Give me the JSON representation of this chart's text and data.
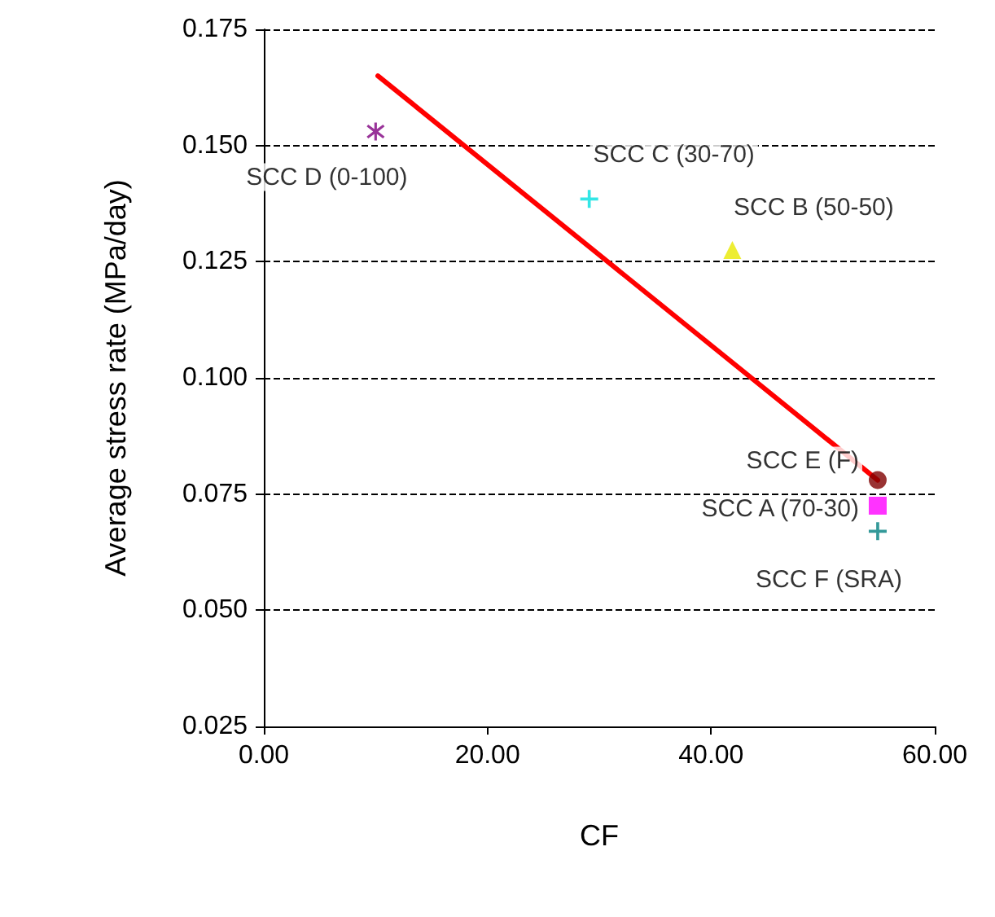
{
  "chart_data": {
    "type": "scatter",
    "xlabel": "CF",
    "ylabel": "Average stress rate (MPa/day)",
    "xlim": [
      0,
      60
    ],
    "xticks": [
      {
        "value": 0,
        "label": "0.00"
      },
      {
        "value": 20,
        "label": "20.00"
      },
      {
        "value": 40,
        "label": "40.00"
      },
      {
        "value": 60,
        "label": "60.00"
      }
    ],
    "ylim": [
      0.025,
      0.175
    ],
    "yticks": [
      {
        "value": 0.025,
        "label": "0.025"
      },
      {
        "value": 0.05,
        "label": "0.050"
      },
      {
        "value": 0.075,
        "label": "0.075"
      },
      {
        "value": 0.1,
        "label": "0.100"
      },
      {
        "value": 0.125,
        "label": "0.125"
      },
      {
        "value": 0.15,
        "label": "0.150"
      },
      {
        "value": 0.175,
        "label": "0.175"
      }
    ],
    "grid": "y",
    "legend": false,
    "series": [
      {
        "name": "SCC D (0-100)",
        "color": "#800080",
        "marker": "star",
        "x": [
          10.0
        ],
        "values": [
          0.153
        ]
      },
      {
        "name": "SCC C (30-70)",
        "color": "#00e0e0",
        "marker": "cross",
        "x": [
          29.1
        ],
        "values": [
          0.1385
        ]
      },
      {
        "name": "SCC B (50-50)",
        "color": "#e8e800",
        "marker": "triangle",
        "x": [
          41.9
        ],
        "values": [
          0.1275
        ]
      },
      {
        "name": "SCC E (F)",
        "color": "#800000",
        "marker": "circle",
        "x": [
          54.9
        ],
        "values": [
          0.078
        ]
      },
      {
        "name": "SCC A (70-30)",
        "color": "#ff00ff",
        "marker": "square",
        "x": [
          54.9
        ],
        "values": [
          0.0725
        ]
      },
      {
        "name": "SCC F (SRA)",
        "color": "#008080",
        "marker": "cross",
        "x": [
          54.9
        ],
        "values": [
          0.067
        ]
      },
      {
        "type": "line",
        "color": "#ff0000",
        "marker": "none",
        "x": [
          10.2,
          54.9
        ],
        "values": [
          0.165,
          0.078
        ]
      }
    ]
  }
}
